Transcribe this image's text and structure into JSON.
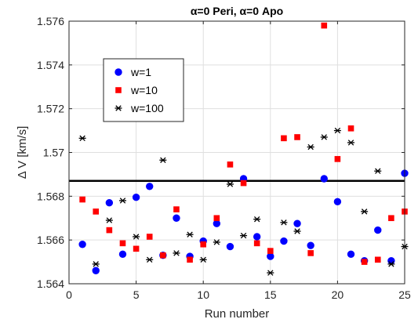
{
  "chart_data": {
    "type": "scatter",
    "title": "α=0 Peri, α=0 Apo",
    "xlabel": "Run number",
    "ylabel": "Δ V [km/s]",
    "xlim": [
      0,
      25
    ],
    "ylim": [
      1.564,
      1.576
    ],
    "xticks": [
      "0",
      "5",
      "10",
      "15",
      "20",
      "25"
    ],
    "yticks": [
      "1.564",
      "1.566",
      "1.568",
      "1.57",
      "1.572",
      "1.574",
      "1.576"
    ],
    "grid": true,
    "legend_position": "upper-left-inside",
    "reference_line": 1.5687,
    "x": [
      1,
      2,
      3,
      4,
      5,
      6,
      7,
      8,
      9,
      10,
      11,
      12,
      13,
      14,
      15,
      16,
      17,
      18,
      19,
      20,
      21,
      22,
      23,
      24,
      25
    ],
    "series": [
      {
        "name": "w=1",
        "marker": "circle",
        "color": "#0000ff",
        "values": [
          1.5658,
          1.5646,
          1.5677,
          1.56535,
          1.56795,
          1.56845,
          1.5653,
          1.567,
          1.56525,
          1.56595,
          1.56675,
          1.5657,
          1.5688,
          1.56615,
          1.56525,
          1.56595,
          1.56675,
          1.56575,
          1.5688,
          1.56775,
          1.56535,
          1.56505,
          1.56645,
          1.56505,
          1.56905
        ]
      },
      {
        "name": "w=10",
        "marker": "square",
        "color": "#ff0000",
        "values": [
          1.56785,
          1.5673,
          1.56645,
          1.56585,
          1.5656,
          1.56615,
          1.5653,
          1.5674,
          1.5651,
          1.5658,
          1.567,
          1.56945,
          1.5686,
          1.56585,
          1.5655,
          1.57065,
          1.5707,
          1.5654,
          1.5758,
          1.5697,
          1.5711,
          1.565,
          1.5651,
          1.567,
          1.5673
        ]
      },
      {
        "name": "w=100",
        "marker": "asterisk",
        "color": "#000000",
        "values": [
          1.57065,
          1.5649,
          1.5669,
          1.5678,
          1.56615,
          1.5651,
          1.56965,
          1.5654,
          1.56625,
          1.5651,
          1.5659,
          1.56855,
          1.5662,
          1.56695,
          1.5645,
          1.5668,
          1.5664,
          1.57025,
          1.5707,
          1.571,
          1.57045,
          1.5673,
          1.56915,
          1.5649,
          1.5657
        ]
      }
    ]
  }
}
